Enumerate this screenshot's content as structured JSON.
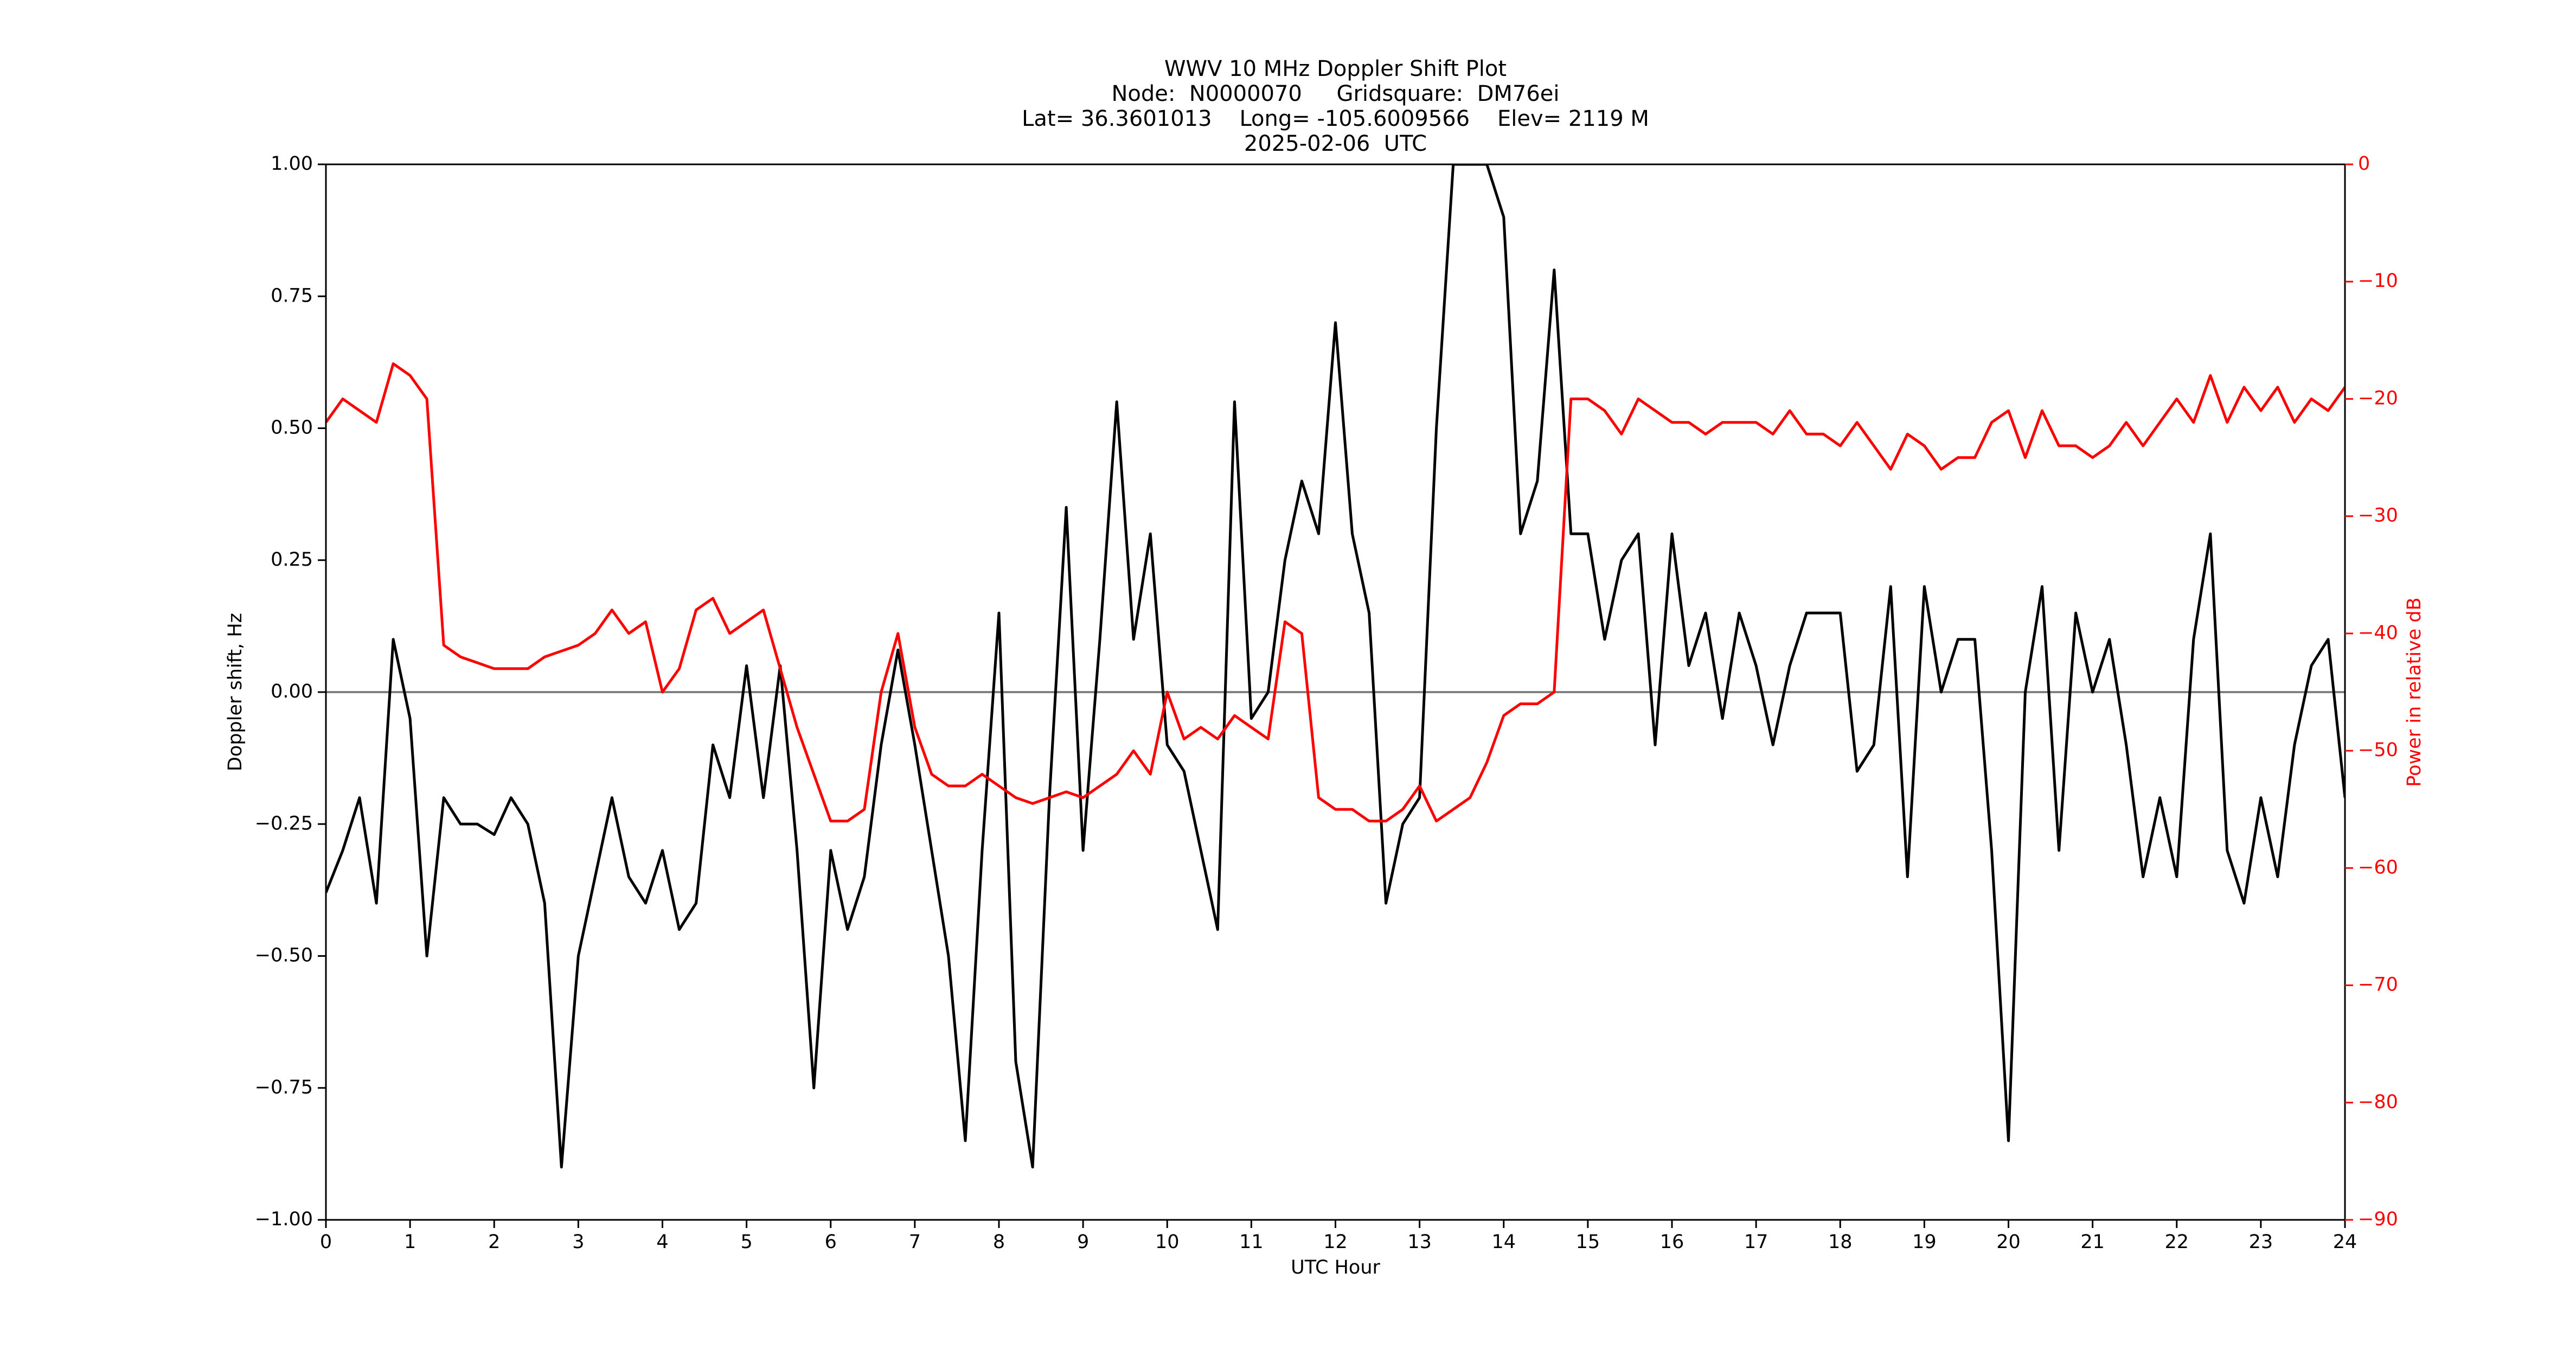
{
  "chart_data": {
    "type": "line",
    "title": [
      "WWV 10 MHz Doppler Shift Plot",
      "Node:  N0000070     Gridsquare:  DM76ei",
      "Lat= 36.3601013    Long= -105.6009566    Elev= 2119 M",
      "2025-02-06  UTC"
    ],
    "xlabel": "UTC Hour",
    "ylabel": "Doppler shift, Hz",
    "y2label": "Power in relative dB",
    "y2color": "#ff0000",
    "hline": 0,
    "xlim": [
      0,
      24
    ],
    "xticks": [
      0,
      1,
      2,
      3,
      4,
      5,
      6,
      7,
      8,
      9,
      10,
      11,
      12,
      13,
      14,
      15,
      16,
      17,
      18,
      19,
      20,
      21,
      22,
      23,
      24
    ],
    "ylim": [
      -1,
      1
    ],
    "yticks": [
      {
        "value": -1,
        "label": "−1.00"
      },
      {
        "value": -0.75,
        "label": "−0.75"
      },
      {
        "value": -0.5,
        "label": "−0.50"
      },
      {
        "value": -0.25,
        "label": "−0.25"
      },
      {
        "value": 0,
        "label": "0.00"
      },
      {
        "value": 0.25,
        "label": "0.25"
      },
      {
        "value": 0.5,
        "label": "0.50"
      },
      {
        "value": 0.75,
        "label": "0.75"
      },
      {
        "value": 1,
        "label": "1.00"
      }
    ],
    "y2lim": [
      -90,
      0
    ],
    "y2ticks": [
      {
        "value": -90,
        "label": "−90"
      },
      {
        "value": -80,
        "label": "−80"
      },
      {
        "value": -70,
        "label": "−70"
      },
      {
        "value": -60,
        "label": "−60"
      },
      {
        "value": -50,
        "label": "−50"
      },
      {
        "value": -40,
        "label": "−40"
      },
      {
        "value": -30,
        "label": "−30"
      },
      {
        "value": -20,
        "label": "−20"
      },
      {
        "value": -10,
        "label": "−10"
      },
      0
    ],
    "x": [
      0,
      0.2,
      0.4,
      0.6,
      0.8,
      1,
      1.2,
      1.4,
      1.6,
      1.8,
      2,
      2.2,
      2.4,
      2.6,
      2.8,
      3,
      3.2,
      3.4,
      3.6,
      3.8,
      4,
      4.2,
      4.4,
      4.6,
      4.8,
      5,
      5.2,
      5.4,
      5.6,
      5.8,
      6,
      6.2,
      6.4,
      6.6,
      6.8,
      7,
      7.2,
      7.4,
      7.6,
      7.8,
      8,
      8.2,
      8.4,
      8.6,
      8.8,
      9,
      9.2,
      9.4,
      9.6,
      9.8,
      10,
      10.2,
      10.4,
      10.6,
      10.8,
      11,
      11.2,
      11.4,
      11.6,
      11.8,
      12,
      12.2,
      12.4,
      12.6,
      12.8,
      13,
      13.2,
      13.4,
      13.6,
      13.8,
      14,
      14.2,
      14.4,
      14.6,
      14.8,
      15,
      15.2,
      15.4,
      15.6,
      15.8,
      16,
      16.2,
      16.4,
      16.6,
      16.8,
      17,
      17.2,
      17.4,
      17.6,
      17.8,
      18,
      18.2,
      18.4,
      18.6,
      18.8,
      19,
      19.2,
      19.4,
      19.6,
      19.8,
      20,
      20.2,
      20.4,
      20.6,
      20.8,
      21,
      21.2,
      21.4,
      21.6,
      21.8,
      22,
      22.2,
      22.4,
      22.6,
      22.8,
      23,
      23.2,
      23.4,
      23.6,
      23.8,
      24
    ],
    "series": [
      {
        "color": "#000000",
        "values": [
          -0.38,
          -0.3,
          -0.2,
          -0.4,
          0.1,
          -0.05,
          -0.5,
          -0.2,
          -0.25,
          -0.25,
          -0.27,
          -0.2,
          -0.25,
          -0.4,
          -0.9,
          -0.5,
          -0.35,
          -0.2,
          -0.35,
          -0.4,
          -0.3,
          -0.45,
          -0.4,
          -0.1,
          -0.2,
          0.05,
          -0.2,
          0.05,
          -0.3,
          -0.75,
          -0.3,
          -0.45,
          -0.35,
          -0.1,
          0.08,
          -0.1,
          -0.3,
          -0.5,
          -0.85,
          -0.3,
          0.15,
          -0.7,
          -0.9,
          -0.2,
          0.35,
          -0.3,
          0.1,
          0.55,
          0.1,
          0.3,
          -0.1,
          -0.15,
          -0.3,
          -0.45,
          0.55,
          -0.05,
          0,
          0.25,
          0.4,
          0.3,
          0.7,
          0.3,
          0.15,
          -0.4,
          -0.25,
          -0.2,
          0.5,
          1,
          1,
          1,
          0.9,
          0.3,
          0.4,
          0.8,
          0.3,
          0.3,
          0.1,
          0.25,
          0.3,
          -0.1,
          0.3,
          0.05,
          0.15,
          -0.05,
          0.15,
          0.05,
          -0.1,
          0.05,
          0.15,
          0.15,
          0.15,
          -0.15,
          -0.1,
          0.2,
          -0.35,
          0.2,
          0,
          0.1,
          0.1,
          -0.3,
          -0.85,
          0,
          0.2,
          -0.3,
          0.15,
          0,
          0.1,
          -0.1,
          -0.35,
          -0.2,
          -0.35,
          0.1,
          0.3,
          -0.3,
          -0.4,
          -0.2,
          -0.35,
          -0.1,
          0.05,
          0.1,
          -0.2
        ]
      },
      {
        "color": "#ff0000",
        "axis": "y2",
        "values": [
          -22,
          -20,
          -21,
          -22,
          -17,
          -18,
          -20,
          -41,
          -42,
          -42.5,
          -43,
          -43,
          -43,
          -42,
          -41.5,
          -41,
          -40,
          -38,
          -40,
          -39,
          -45,
          -43,
          -38,
          -37,
          -40,
          -39,
          -38,
          -43,
          -48,
          -52,
          -56,
          -56,
          -55,
          -45,
          -40,
          -48,
          -52,
          -53,
          -53,
          -52,
          -53,
          -54,
          -54.5,
          -54,
          -53.5,
          -54,
          -53,
          -52,
          -50,
          -52,
          -45,
          -49,
          -48,
          -49,
          -47,
          -48,
          -49,
          -39,
          -40,
          -54,
          -55,
          -55,
          -56,
          -56,
          -55,
          -53,
          -56,
          -55,
          -54,
          -51,
          -47,
          -46,
          -46,
          -45,
          -20,
          -20,
          -21,
          -23,
          -20,
          -21,
          -22,
          -22,
          -23,
          -22,
          -22,
          -22,
          -23,
          -21,
          -23,
          -23,
          -24,
          -22,
          -24,
          -26,
          -23,
          -24,
          -26,
          -25,
          -25,
          -22,
          -21,
          -25,
          -21,
          -24,
          -24,
          -25,
          -24,
          -22,
          -24,
          -22,
          -20,
          -22,
          -18,
          -22,
          -19,
          -21,
          -19,
          -22,
          -20,
          -21,
          -19
        ]
      }
    ]
  }
}
